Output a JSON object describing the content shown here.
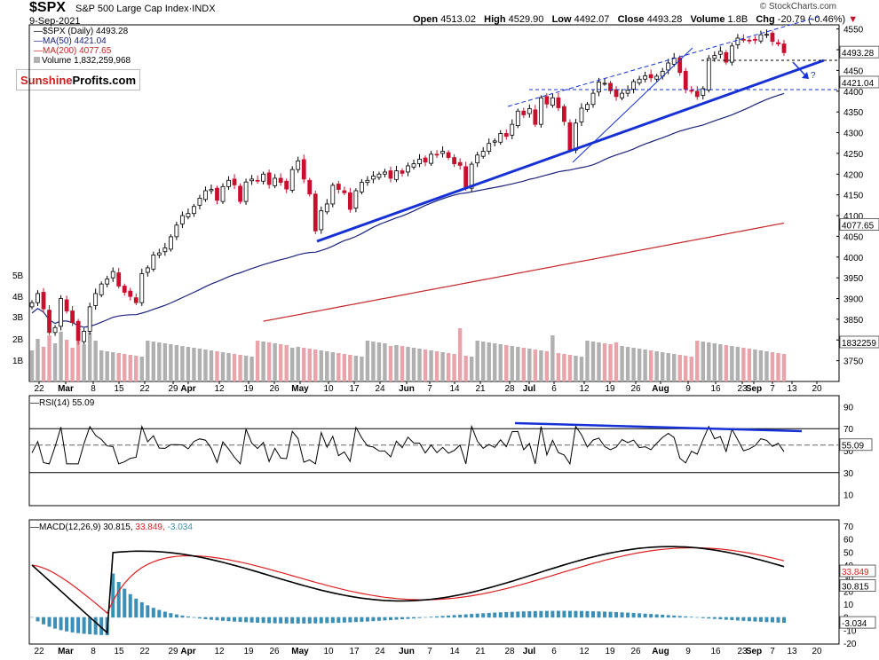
{
  "header": {
    "symbol": "$SPX",
    "name": "S&P 500 Large Cap Index",
    "exchange": "INDX",
    "date": "9-Sep-2021",
    "open_label": "Open",
    "open": "4513.02",
    "high_label": "High",
    "high": "4529.90",
    "low_label": "Low",
    "low": "4492.07",
    "close_label": "Close",
    "close": "4493.28",
    "volume_label": "Volume",
    "volume": "1.8B",
    "chg_label": "Chg",
    "chg": "-20.79 (-0.46%)",
    "credit": "© StockCharts.com"
  },
  "legend": {
    "price": "$SPX (Daily) 4493.28",
    "ma50": "MA(50) 4421.04",
    "ma200": "MA(200) 4077.65",
    "volume": "Volume 1,832,259,968"
  },
  "logo": {
    "part1": "Sunshine",
    "part2": "Profits.com"
  },
  "rsi_label": "RSI(14) 55.09",
  "macd_label": {
    "main": "MACD(12,26,9) 30.815,",
    "signal": "33.849,",
    "hist": "-3.034"
  },
  "colors": {
    "up": "#000000",
    "down": "#c8102e",
    "ma50": "#1a237e",
    "ma200": "#c62828",
    "trend": "#1531d6",
    "vol_up": "#b0b0b0",
    "vol_down": "#e9a3aa",
    "hist": "#3a8fb7",
    "signal": "#e02020"
  },
  "chart_data": {
    "type": "line",
    "title": "$SPX S&P 500 Large Cap Index",
    "x_tick_labels": [
      "22",
      "Mar",
      "8",
      "15",
      "22",
      "29",
      "Apr",
      "12",
      "19",
      "26",
      "May",
      "10",
      "17",
      "24",
      "Jun",
      "7",
      "14",
      "21",
      "28",
      "Jul",
      "6",
      "12",
      "19",
      "26",
      "Aug",
      "9",
      "16",
      "23",
      "Sep",
      "7",
      "13",
      "20"
    ],
    "price_axis": {
      "ticks": [
        3750,
        3800,
        3850,
        3900,
        3950,
        4000,
        4050,
        4100,
        4150,
        4200,
        4250,
        4300,
        4350,
        4400,
        4450,
        4500,
        4550
      ],
      "ylim": [
        3700,
        4560
      ]
    },
    "price_labels": [
      {
        "value": 4493.28,
        "text": "4493.28"
      },
      {
        "value": 4421.04,
        "text": "4421.04"
      },
      {
        "value": 4077.65,
        "text": "4077.65"
      },
      {
        "value": 1832259,
        "text": "1832259"
      }
    ],
    "volume_axis": {
      "ticks": [
        "5B",
        "4B",
        "3B",
        "2B",
        "1B"
      ]
    },
    "close_series": [
      3890,
      3912,
      3875,
      3818,
      3830,
      3900,
      3870,
      3842,
      3799,
      3821,
      3880,
      3912,
      3935,
      3947,
      3965,
      3930,
      3915,
      3905,
      3890,
      3960,
      3974,
      4005,
      4010,
      4022,
      4049,
      4077,
      4100,
      4105,
      4122,
      4142,
      4160,
      4163,
      4137,
      4170,
      4185,
      4174,
      4134,
      4181,
      4188,
      4183,
      4200,
      4175,
      4190,
      4180,
      4164,
      4211,
      4232,
      4188,
      4152,
      4063,
      4112,
      4128,
      4173,
      4163,
      4155,
      4115,
      4160,
      4180,
      4185,
      4195,
      4200,
      4205,
      4190,
      4208,
      4202,
      4220,
      4225,
      4236,
      4229,
      4248,
      4247,
      4255,
      4240,
      4225,
      4221,
      4166,
      4224,
      4246,
      4255,
      4274,
      4280,
      4298,
      4291,
      4320,
      4352,
      4343,
      4358,
      4320,
      4384,
      4369,
      4384,
      4360,
      4327,
      4258,
      4323,
      4359,
      4368,
      4395,
      4422,
      4419,
      4401,
      4387,
      4395,
      4402,
      4423,
      4429,
      4437,
      4432,
      4436,
      4448,
      4468,
      4480,
      4445,
      4405,
      4400,
      4387,
      4406,
      4479,
      4486,
      4496,
      4470,
      4509,
      4528,
      4523,
      4522,
      4524,
      4536,
      4537,
      4520,
      4514,
      4493
    ],
    "series": [
      {
        "name": "MA(50)",
        "last": 4421.04
      },
      {
        "name": "MA(200)",
        "last": 4077.65
      }
    ],
    "rsi": {
      "label": "RSI(14)",
      "last": 55.09,
      "ticks": [
        90,
        70,
        50,
        30,
        10
      ],
      "levels": [
        70,
        30
      ]
    },
    "macd": {
      "label": "MACD(12,26,9)",
      "macd": 30.815,
      "signal": 33.849,
      "histogram": -3.034,
      "ticks": [
        70,
        60,
        50,
        40,
        30,
        20,
        10,
        0,
        -10,
        -20
      ],
      "value_labels": [
        "33.849",
        "30.815",
        "-3.034"
      ]
    }
  }
}
